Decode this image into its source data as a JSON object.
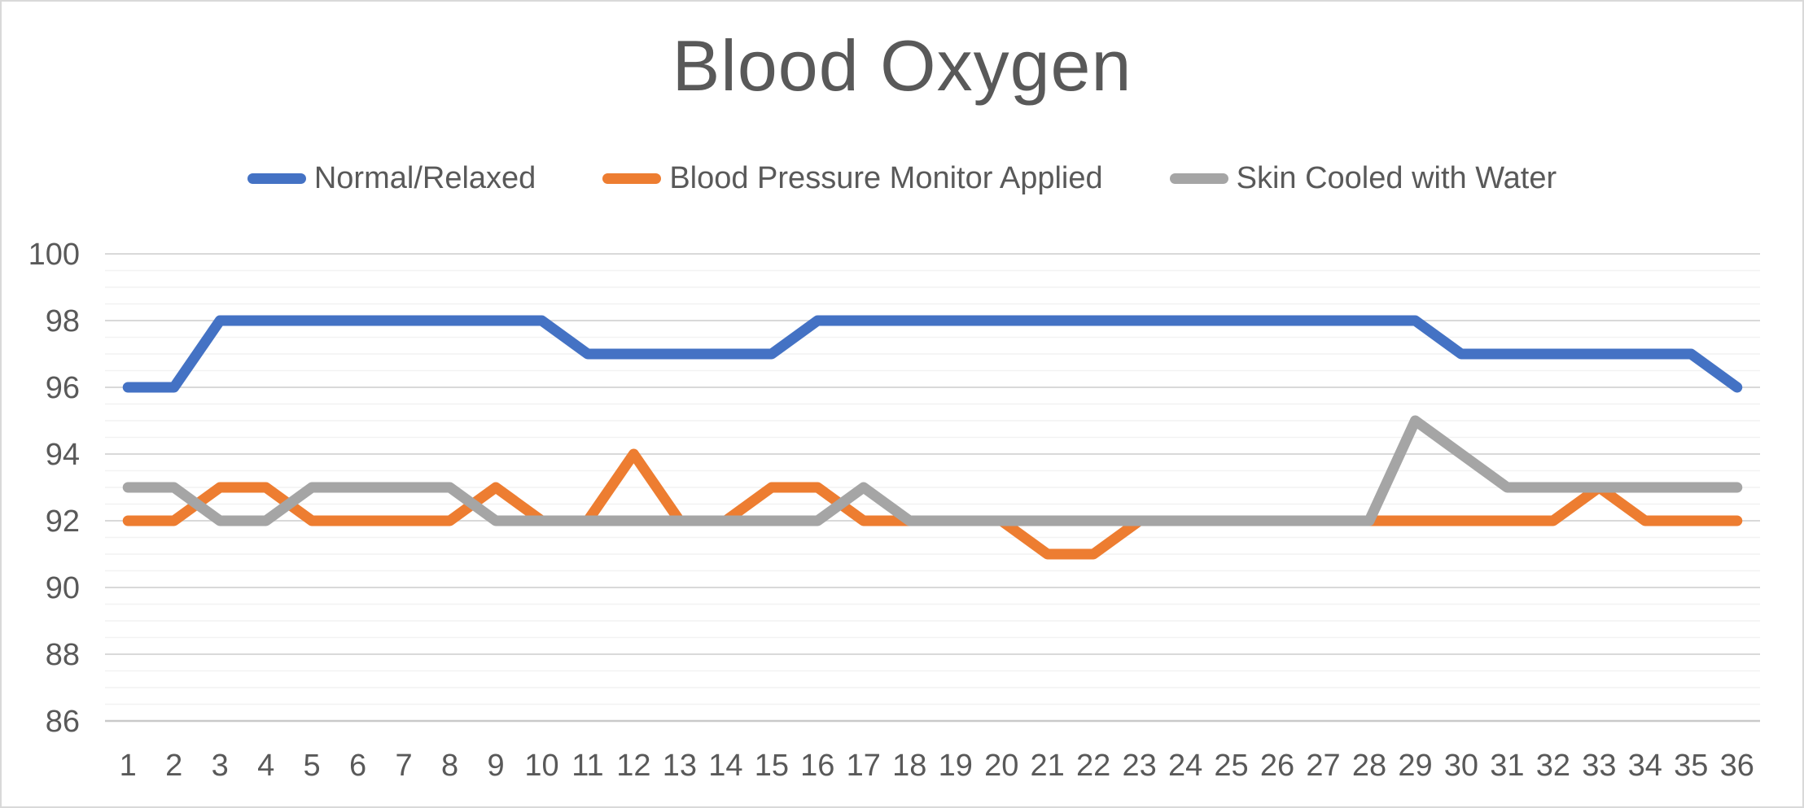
{
  "chart_data": {
    "type": "line",
    "title": "Blood Oxygen",
    "xlabel": "",
    "ylabel": "",
    "legend_position": "top",
    "grid": true,
    "categories": [
      "1",
      "2",
      "3",
      "4",
      "5",
      "6",
      "7",
      "8",
      "9",
      "10",
      "11",
      "12",
      "13",
      "14",
      "15",
      "16",
      "17",
      "18",
      "19",
      "20",
      "21",
      "22",
      "23",
      "24",
      "25",
      "26",
      "27",
      "28",
      "29",
      "30",
      "31",
      "32",
      "33",
      "34",
      "35",
      "36"
    ],
    "y_axis": {
      "min": 86,
      "max": 100,
      "major_step": 2,
      "minor_step": 0.5,
      "tick_labels": [
        "100",
        "98",
        "96",
        "94",
        "92",
        "90",
        "88",
        "86"
      ]
    },
    "series": [
      {
        "name": "Normal/Relaxed",
        "color": "#4472C4",
        "values": [
          96,
          96,
          98,
          98,
          98,
          98,
          98,
          98,
          98,
          98,
          97,
          97,
          97,
          97,
          97,
          98,
          98,
          98,
          98,
          98,
          98,
          98,
          98,
          98,
          98,
          98,
          98,
          98,
          98,
          97,
          97,
          97,
          97,
          97,
          97,
          96
        ]
      },
      {
        "name": "Blood Pressure Monitor Applied",
        "color": "#ED7D31",
        "values": [
          92,
          92,
          93,
          93,
          92,
          92,
          92,
          92,
          93,
          92,
          92,
          94,
          92,
          92,
          93,
          93,
          92,
          92,
          92,
          92,
          91,
          91,
          92,
          92,
          92,
          92,
          92,
          92,
          92,
          92,
          92,
          92,
          93,
          92,
          92,
          92
        ]
      },
      {
        "name": "Skin Cooled with Water",
        "color": "#A5A5A5",
        "values": [
          93,
          93,
          92,
          92,
          93,
          93,
          93,
          93,
          92,
          92,
          92,
          92,
          92,
          92,
          92,
          92,
          93,
          92,
          92,
          92,
          92,
          92,
          92,
          92,
          92,
          92,
          92,
          92,
          95,
          94,
          93,
          93,
          93,
          93,
          93,
          93
        ]
      }
    ],
    "style": {
      "title_color": "#595959",
      "axis_text_color": "#595959",
      "gridline_major_color": "#D9D9D9",
      "gridline_minor_color": "#F2F2F2",
      "background": "#FFFFFF"
    }
  }
}
